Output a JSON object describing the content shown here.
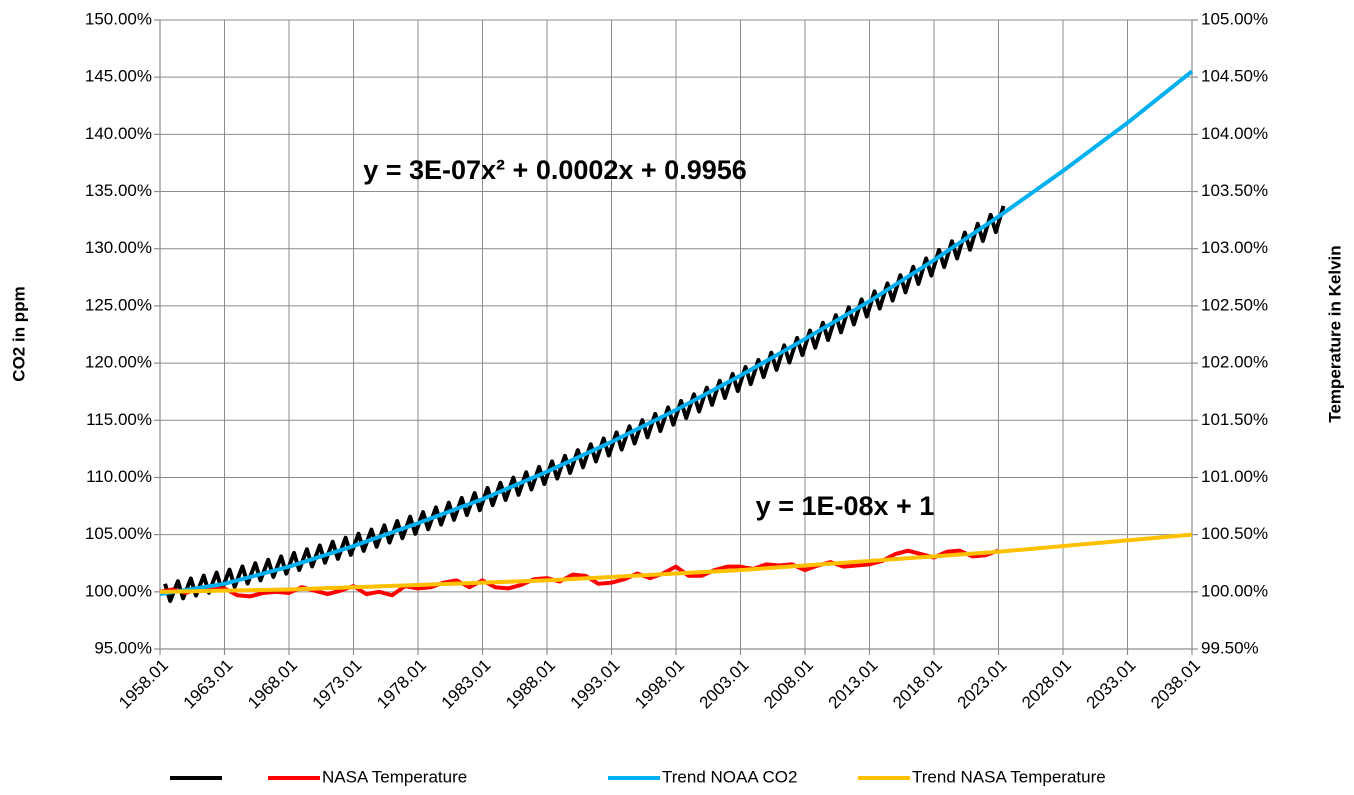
{
  "chart_data": {
    "type": "line",
    "y_label": "CO2 in ppm",
    "y2_label": "Temperature in Kelvin",
    "annotations": [
      {
        "text": "y = 3E-07x² + 0.0002x + 0.9956",
        "color": "#ff0000"
      },
      {
        "text": "y = 1E-08x + 1",
        "color": "#ff0000"
      }
    ],
    "grid": true,
    "legend": "bottom",
    "xlim": [
      1958.01,
      2038.01
    ],
    "xticks": [
      1958.01,
      1963.01,
      1968.01,
      1973.01,
      1978.01,
      1983.01,
      1988.01,
      1993.01,
      1998.01,
      2003.01,
      2008.01,
      2013.01,
      2018.01,
      2023.01,
      2028.01,
      2033.01,
      2038.01
    ],
    "ylim": [
      95,
      150
    ],
    "yticks": [
      {
        "value": 95,
        "label": "95.00%"
      },
      {
        "value": 100,
        "label": "100.00%"
      },
      {
        "value": 105,
        "label": "105.00%"
      },
      {
        "value": 110,
        "label": "110.00%"
      },
      {
        "value": 115,
        "label": "115.00%"
      },
      {
        "value": 120,
        "label": "120.00%"
      },
      {
        "value": 125,
        "label": "125.00%"
      },
      {
        "value": 130,
        "label": "130.00%"
      },
      {
        "value": 135,
        "label": "135.00%"
      },
      {
        "value": 140,
        "label": "140.00%"
      },
      {
        "value": 145,
        "label": "145.00%"
      },
      {
        "value": 150,
        "label": "150.00%"
      }
    ],
    "y2lim": [
      99.5,
      105
    ],
    "y2ticks": [
      {
        "value": 99.5,
        "label": "99.50%"
      },
      {
        "value": 100,
        "label": "100.00%"
      },
      {
        "value": 100.5,
        "label": "100.50%"
      },
      {
        "value": 101,
        "label": "101.00%"
      },
      {
        "value": 101.5,
        "label": "101.50%"
      },
      {
        "value": 102,
        "label": "102.00%"
      },
      {
        "value": 102.5,
        "label": "102.50%"
      },
      {
        "value": 103,
        "label": "103.00%"
      },
      {
        "value": 103.5,
        "label": "103.50%"
      },
      {
        "value": 104,
        "label": "104.00%"
      },
      {
        "value": 104.5,
        "label": "104.50%"
      },
      {
        "value": 105,
        "label": "105.00%"
      }
    ],
    "series": [
      {
        "color": "#000000",
        "x": [
          1958.4,
          1958.8,
          1959.4,
          1959.8,
          1960.4,
          1960.8,
          1961.4,
          1961.8,
          1962.4,
          1962.8,
          1963.4,
          1963.8,
          1964.4,
          1964.8,
          1965.4,
          1965.8,
          1966.4,
          1966.8,
          1967.4,
          1967.8,
          1968.4,
          1968.8,
          1969.4,
          1969.8,
          1970.4,
          1970.8,
          1971.4,
          1971.8,
          1972.4,
          1972.8,
          1973.4,
          1973.8,
          1974.4,
          1974.8,
          1975.4,
          1975.8,
          1976.4,
          1976.8,
          1977.4,
          1977.8,
          1978.4,
          1978.8,
          1979.4,
          1979.8,
          1980.4,
          1980.8,
          1981.4,
          1981.8,
          1982.4,
          1982.8,
          1983.4,
          1983.8,
          1984.4,
          1984.8,
          1985.4,
          1985.8,
          1986.4,
          1986.8,
          1987.4,
          1987.8,
          1988.4,
          1988.8,
          1989.4,
          1989.8,
          1990.4,
          1990.8,
          1991.4,
          1991.8,
          1992.4,
          1992.8,
          1993.4,
          1993.8,
          1994.4,
          1994.8,
          1995.4,
          1995.8,
          1996.4,
          1996.8,
          1997.4,
          1997.8,
          1998.4,
          1998.8,
          1999.4,
          1999.8,
          2000.4,
          2000.8,
          2001.4,
          2001.8,
          2002.4,
          2002.8,
          2003.4,
          2003.8,
          2004.4,
          2004.8,
          2005.4,
          2005.8,
          2006.4,
          2006.8,
          2007.4,
          2007.8,
          2008.4,
          2008.8,
          2009.4,
          2009.8,
          2010.4,
          2010.8,
          2011.4,
          2011.8,
          2012.4,
          2012.8,
          2013.4,
          2013.8,
          2014.4,
          2014.8,
          2015.4,
          2015.8,
          2016.4,
          2016.8,
          2017.4,
          2017.8,
          2018.4,
          2018.8,
          2019.4,
          2019.8,
          2020.4,
          2020.8,
          2021.4,
          2021.8,
          2022.4,
          2022.8,
          2023.4
        ],
        "values": [
          100.7,
          99.2,
          100.93,
          99.43,
          101.17,
          99.67,
          101.42,
          99.92,
          101.68,
          100.18,
          101.94,
          100.44,
          102.22,
          100.72,
          102.5,
          101.0,
          102.8,
          101.3,
          103.09,
          101.59,
          103.4,
          101.9,
          103.72,
          102.22,
          104.05,
          102.55,
          104.38,
          102.88,
          104.73,
          103.23,
          105.08,
          103.58,
          105.44,
          103.94,
          105.81,
          104.31,
          106.19,
          104.69,
          106.57,
          105.07,
          106.97,
          105.47,
          107.38,
          105.88,
          107.79,
          106.29,
          108.21,
          106.71,
          108.64,
          107.14,
          109.08,
          107.58,
          109.53,
          108.03,
          109.98,
          108.48,
          110.45,
          108.95,
          110.92,
          109.42,
          111.4,
          109.9,
          111.89,
          110.39,
          112.39,
          110.89,
          112.9,
          111.4,
          113.41,
          111.91,
          113.94,
          112.44,
          114.47,
          112.97,
          115.01,
          113.51,
          115.56,
          114.06,
          116.12,
          114.62,
          116.69,
          115.19,
          117.27,
          115.77,
          117.85,
          116.35,
          118.45,
          116.95,
          119.05,
          117.55,
          119.66,
          118.16,
          120.28,
          118.78,
          120.91,
          119.41,
          121.55,
          120.05,
          122.2,
          120.7,
          122.85,
          121.35,
          123.52,
          122.02,
          124.19,
          122.69,
          124.88,
          123.38,
          125.57,
          124.07,
          126.27,
          124.77,
          126.97,
          125.47,
          127.69,
          126.19,
          128.42,
          126.92,
          129.15,
          127.65,
          129.9,
          128.4,
          130.65,
          129.15,
          131.41,
          129.91,
          132.18,
          130.68,
          132.96,
          131.46,
          133.74
        ]
      },
      {
        "name": "NASA Temperature",
        "color": "#ff0000",
        "axis": "y2",
        "x": [
          1958,
          1959,
          1960,
          1961,
          1962,
          1963,
          1964,
          1965,
          1966,
          1967,
          1968,
          1969,
          1970,
          1971,
          1972,
          1973,
          1974,
          1975,
          1976,
          1977,
          1978,
          1979,
          1980,
          1981,
          1982,
          1983,
          1984,
          1985,
          1986,
          1987,
          1988,
          1989,
          1990,
          1991,
          1992,
          1993,
          1994,
          1995,
          1996,
          1997,
          1998,
          1999,
          2000,
          2001,
          2002,
          2003,
          2004,
          2005,
          2006,
          2007,
          2008,
          2009,
          2010,
          2011,
          2012,
          2013,
          2014,
          2015,
          2016,
          2017,
          2018,
          2019,
          2020,
          2021,
          2022,
          2023
        ],
        "values": [
          100.0,
          100.02,
          99.99,
          100.03,
          100.02,
          100.03,
          99.97,
          99.96,
          99.99,
          100.0,
          99.99,
          100.04,
          100.01,
          99.98,
          100.01,
          100.05,
          99.98,
          100.0,
          99.97,
          100.05,
          100.03,
          100.04,
          100.08,
          100.1,
          100.04,
          100.1,
          100.04,
          100.03,
          100.06,
          100.11,
          100.12,
          100.09,
          100.15,
          100.14,
          100.07,
          100.08,
          100.11,
          100.16,
          100.12,
          100.16,
          100.22,
          100.14,
          100.14,
          100.19,
          100.22,
          100.22,
          100.2,
          100.24,
          100.23,
          100.24,
          100.19,
          100.23,
          100.26,
          100.22,
          100.23,
          100.24,
          100.27,
          100.33,
          100.36,
          100.33,
          100.3,
          100.35,
          100.36,
          100.31,
          100.32,
          100.36
        ]
      },
      {
        "name": "Trend NOAA CO2",
        "color": "#00b0f0",
        "x": [
          1958,
          1963,
          1968,
          1973,
          1978,
          1983,
          1988,
          1993,
          1998,
          2003,
          2008,
          2013,
          2018,
          2023,
          2028,
          2033,
          2038
        ],
        "values": [
          99.8,
          100.7,
          102.2,
          104.0,
          106.0,
          108.1,
          110.5,
          113.1,
          115.9,
          118.9,
          122.1,
          125.4,
          129.0,
          132.8,
          136.8,
          141.0,
          145.5
        ]
      },
      {
        "name": "Trend NASA Temperature",
        "color": "#ffc000",
        "axis": "y2",
        "x": [
          1958,
          1963,
          1968,
          1973,
          1978,
          1983,
          1988,
          1993,
          1998,
          2003,
          2008,
          2013,
          2018,
          2023,
          2028,
          2033,
          2038
        ],
        "values": [
          100.0,
          100.01,
          100.02,
          100.04,
          100.06,
          100.08,
          100.1,
          100.13,
          100.16,
          100.19,
          100.23,
          100.27,
          100.31,
          100.35,
          100.4,
          100.45,
          100.5
        ]
      }
    ]
  }
}
